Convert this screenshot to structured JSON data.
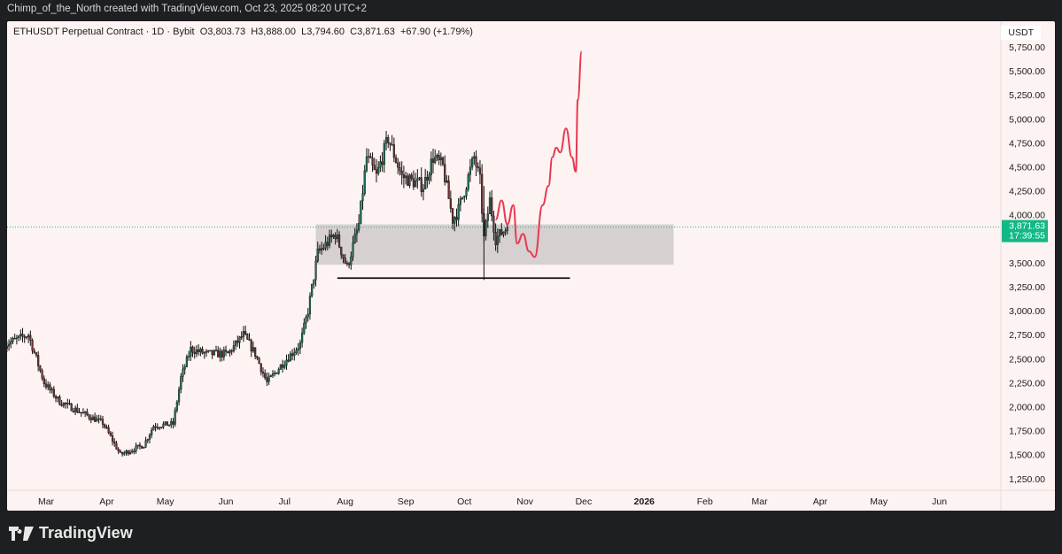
{
  "credit": "Chimp_of_the_North created with TradingView.com, Oct 23, 2025 08:20 UTC+2",
  "brand": "TradingView",
  "chart_data": {
    "type": "candlestick",
    "symbol": "ETHUSDT Perpetual Contract · 1D · Bybit",
    "ohlc_label": "O3,803.73  H3,888.00  L3,794.60  C3,871.63  +67.90 (+1.79%)",
    "currency": "USDT",
    "last_price": "3,871.63",
    "countdown": "17:39:55",
    "ylim": [
      1100,
      5900
    ],
    "y_ticks": [
      "5,750.00",
      "5,500.00",
      "5,250.00",
      "5,000.00",
      "4,750.00",
      "4,500.00",
      "4,250.00",
      "4,000.00",
      "3,500.00",
      "3,250.00",
      "3,000.00",
      "2,750.00",
      "2,500.00",
      "2,250.00",
      "2,000.00",
      "1,750.00",
      "1,500.00",
      "1,250.00"
    ],
    "x_ticks": [
      [
        "Mar",
        "2025-03-01"
      ],
      [
        "Apr",
        "2025-04-01"
      ],
      [
        "May",
        "2025-05-01"
      ],
      [
        "Jun",
        "2025-06-01"
      ],
      [
        "Jul",
        "2025-07-01"
      ],
      [
        "Aug",
        "2025-08-01"
      ],
      [
        "Sep",
        "2025-09-01"
      ],
      [
        "Oct",
        "2025-10-01"
      ],
      [
        "Nov",
        "2025-11-01"
      ],
      [
        "Dec",
        "2025-12-01"
      ],
      [
        "2026",
        "2026-01-01"
      ],
      [
        "Feb",
        "2026-02-01"
      ],
      [
        "Mar",
        "2026-03-01"
      ],
      [
        "Apr",
        "2026-04-01"
      ],
      [
        "May",
        "2026-05-01"
      ],
      [
        "Jun",
        "2026-06-01"
      ]
    ],
    "price_path": [
      [
        "2025-02-08",
        2650
      ],
      [
        "2025-02-20",
        2750
      ],
      [
        "2025-02-28",
        2250
      ],
      [
        "2025-03-08",
        2050
      ],
      [
        "2025-03-18",
        1950
      ],
      [
        "2025-03-30",
        1830
      ],
      [
        "2025-04-08",
        1500
      ],
      [
        "2025-04-20",
        1600
      ],
      [
        "2025-04-25",
        1800
      ],
      [
        "2025-05-05",
        1820
      ],
      [
        "2025-05-09",
        2300
      ],
      [
        "2025-05-14",
        2600
      ],
      [
        "2025-05-22",
        2550
      ],
      [
        "2025-06-02",
        2550
      ],
      [
        "2025-06-10",
        2750
      ],
      [
        "2025-06-16",
        2550
      ],
      [
        "2025-06-22",
        2250
      ],
      [
        "2025-06-30",
        2450
      ],
      [
        "2025-07-09",
        2650
      ],
      [
        "2025-07-13",
        3000
      ],
      [
        "2025-07-18",
        3600
      ],
      [
        "2025-07-27",
        3800
      ],
      [
        "2025-08-02",
        3450
      ],
      [
        "2025-08-08",
        3900
      ],
      [
        "2025-08-12",
        4600
      ],
      [
        "2025-08-17",
        4400
      ],
      [
        "2025-08-23",
        4800
      ],
      [
        "2025-08-30",
        4400
      ],
      [
        "2025-09-10",
        4300
      ],
      [
        "2025-09-15",
        4600
      ],
      [
        "2025-09-20",
        4500
      ],
      [
        "2025-09-25",
        3950
      ],
      [
        "2025-09-28",
        4050
      ],
      [
        "2025-10-06",
        4600
      ],
      [
        "2025-10-09",
        4350
      ],
      [
        "2025-10-11",
        3750
      ],
      [
        "2025-10-14",
        4150
      ],
      [
        "2025-10-17",
        3750
      ],
      [
        "2025-10-23",
        3871.63
      ]
    ],
    "projection": [
      [
        "2025-10-17",
        3950
      ],
      [
        "2025-10-20",
        4150
      ],
      [
        "2025-10-23",
        3900
      ],
      [
        "2025-10-26",
        4100
      ],
      [
        "2025-10-28",
        3700
      ],
      [
        "2025-10-31",
        3800
      ],
      [
        "2025-11-03",
        3620
      ],
      [
        "2025-11-06",
        3560
      ],
      [
        "2025-11-10",
        4100
      ],
      [
        "2025-11-13",
        4300
      ],
      [
        "2025-11-15",
        4600
      ],
      [
        "2025-11-17",
        4700
      ],
      [
        "2025-11-19",
        4650
      ],
      [
        "2025-11-22",
        4900
      ],
      [
        "2025-11-25",
        4600
      ],
      [
        "2025-11-27",
        4450
      ],
      [
        "2025-11-28",
        5200
      ],
      [
        "2025-11-30",
        5700
      ]
    ],
    "support_zone": {
      "from": "2025-07-17",
      "to": "2026-01-16",
      "low": 3480,
      "high": 3900
    },
    "support_line": {
      "from": "2025-07-28",
      "to": "2025-11-24",
      "price": 3340
    },
    "colors": {
      "up": "#1f6f56",
      "down": "#6e2f2f",
      "projection": "#e8384f",
      "zone": "#d6d0d0",
      "price_tag": "#12b886",
      "background": "#fdf3f2"
    }
  }
}
